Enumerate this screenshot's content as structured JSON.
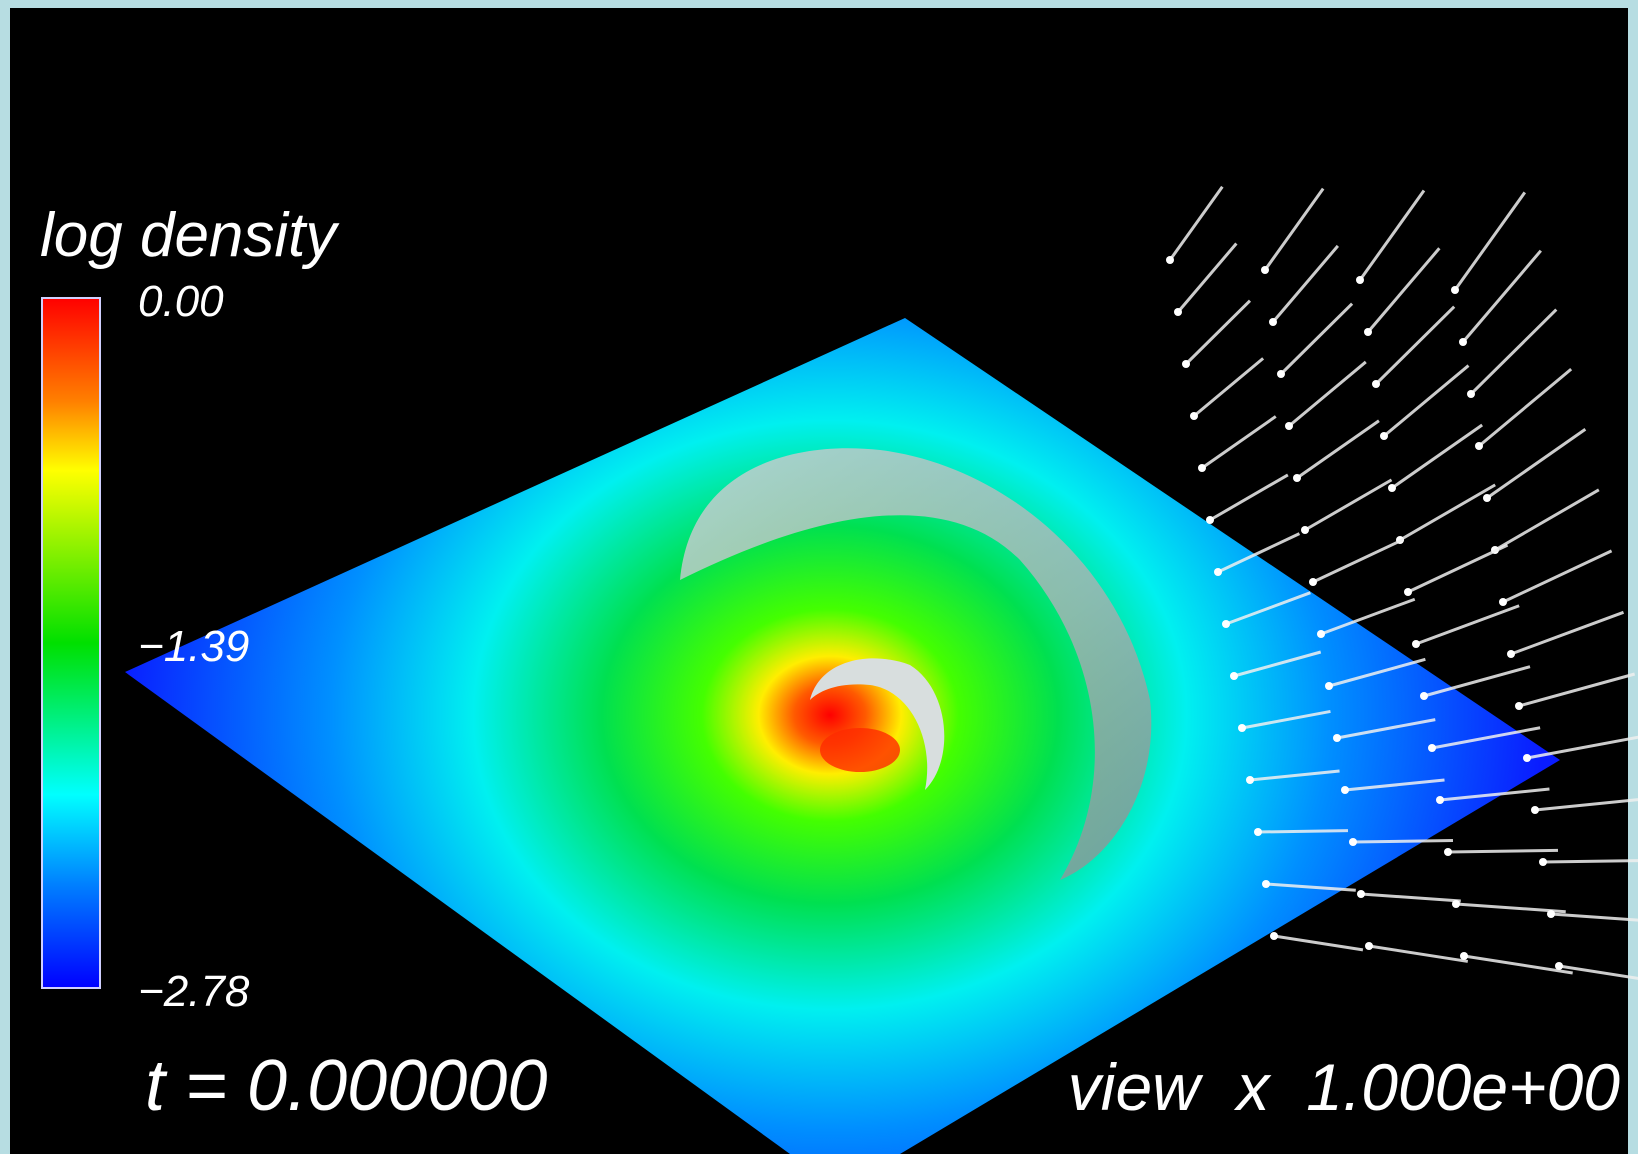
{
  "colorbar": {
    "title": "log density",
    "range": [
      -2.78,
      0
    ],
    "ticks": [
      {
        "value": 0,
        "label": "0.00"
      },
      {
        "value": -1.39,
        "label": "−1.39"
      },
      {
        "value": -2.78,
        "label": "−2.78"
      }
    ]
  },
  "time_label": "t = 0.000000",
  "view_label": "view  x  1.000e+00"
}
